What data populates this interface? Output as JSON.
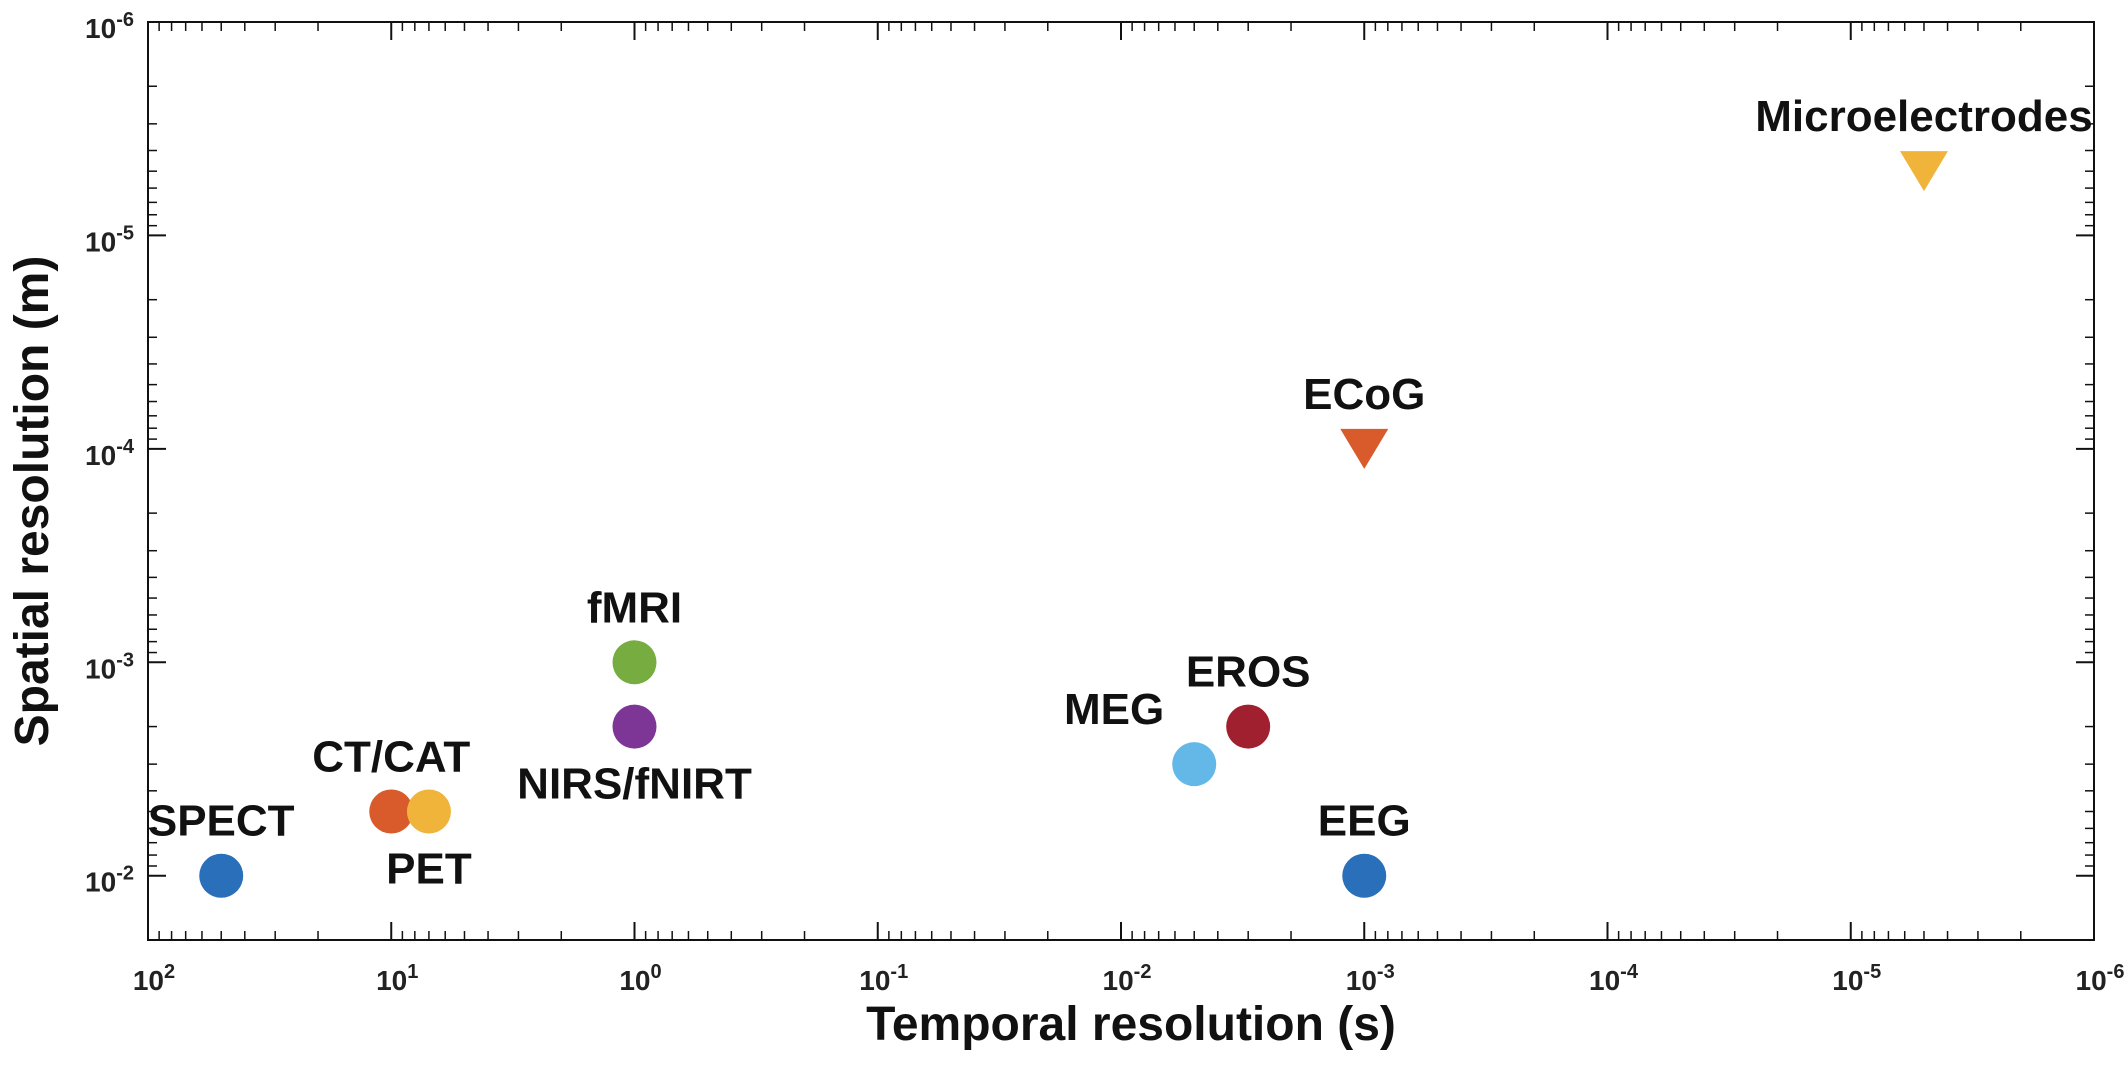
{
  "chart_data": {
    "type": "scatter",
    "title": "",
    "xlabel": "Temporal resolution (s)",
    "ylabel": "Spatial resolution (m)",
    "x_scale": "log",
    "y_scale": "log",
    "x_reversed": true,
    "y_reversed": true,
    "xlim": [
      100,
      1e-06
    ],
    "ylim": [
      0.02,
      1e-06
    ],
    "grid": false,
    "x_ticks": [
      {
        "base": "10",
        "exp": "2",
        "value": 100
      },
      {
        "base": "10",
        "exp": "1",
        "value": 10
      },
      {
        "base": "10",
        "exp": "0",
        "value": 1
      },
      {
        "base": "10",
        "exp": "-1",
        "value": 0.1
      },
      {
        "base": "10",
        "exp": "-2",
        "value": 0.01
      },
      {
        "base": "10",
        "exp": "-3",
        "value": 0.001
      },
      {
        "base": "10",
        "exp": "-4",
        "value": 0.0001
      },
      {
        "base": "10",
        "exp": "-5",
        "value": 1e-05
      },
      {
        "base": "10",
        "exp": "-6",
        "value": 1e-06
      }
    ],
    "y_ticks": [
      {
        "base": "10",
        "exp": "-2",
        "value": 0.01
      },
      {
        "base": "10",
        "exp": "-3",
        "value": 0.001
      },
      {
        "base": "10",
        "exp": "-4",
        "value": 0.0001
      },
      {
        "base": "10",
        "exp": "-5",
        "value": 1e-05
      },
      {
        "base": "10",
        "exp": "-6",
        "value": 1e-06
      }
    ],
    "points": [
      {
        "label": "SPECT",
        "x": 50,
        "y": 0.01,
        "marker": "circle",
        "color": "#2a6fba",
        "label_pos": "above"
      },
      {
        "label": "CT/CAT",
        "x": 10,
        "y": 0.005,
        "marker": "circle",
        "color": "#d95a2b",
        "label_pos": "above"
      },
      {
        "label": "PET",
        "x": 7,
        "y": 0.005,
        "marker": "circle",
        "color": "#f0b43a",
        "label_pos": "below"
      },
      {
        "label": "fMRI",
        "x": 1,
        "y": 0.001,
        "marker": "circle",
        "color": "#77ac40",
        "label_pos": "above"
      },
      {
        "label": "NIRS/fNIRT",
        "x": 1,
        "y": 0.002,
        "marker": "circle",
        "color": "#7d3596",
        "label_pos": "below"
      },
      {
        "label": "MEG",
        "x": 0.005,
        "y": 0.003,
        "marker": "circle",
        "color": "#63b8e8",
        "label_pos": "above-left"
      },
      {
        "label": "EROS",
        "x": 0.003,
        "y": 0.002,
        "marker": "circle",
        "color": "#a12030",
        "label_pos": "above"
      },
      {
        "label": "EEG",
        "x": 0.001,
        "y": 0.01,
        "marker": "circle",
        "color": "#2a6fba",
        "label_pos": "above"
      },
      {
        "label": "ECoG",
        "x": 0.001,
        "y": 0.0001,
        "marker": "triangle-down",
        "color": "#d95a2b",
        "label_pos": "above"
      },
      {
        "label": "Microelectrodes",
        "x": 5e-06,
        "y": 5e-06,
        "marker": "triangle-down",
        "color": "#f0b43a",
        "label_pos": "above"
      }
    ]
  }
}
